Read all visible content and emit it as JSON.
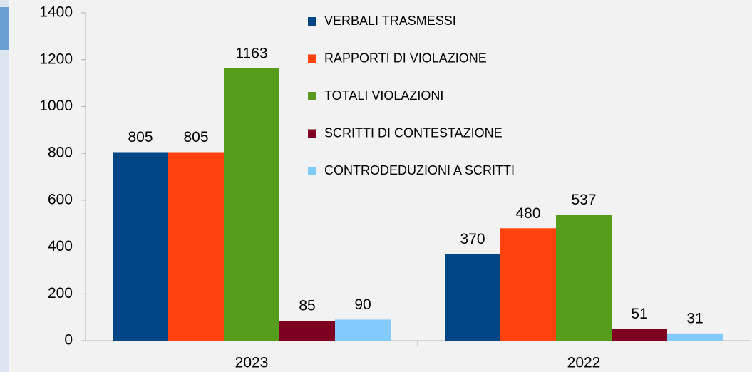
{
  "chart_data": {
    "type": "bar",
    "categories": [
      "2023",
      "2022"
    ],
    "series": [
      {
        "name": "VERBALI TRASMESSI",
        "color": "#004586",
        "values": [
          805,
          370
        ]
      },
      {
        "name": "RAPPORTI DI VIOLAZIONE",
        "color": "#ff420e",
        "values": [
          805,
          480
        ]
      },
      {
        "name": "TOTALI VIOLAZIONI",
        "color": "#579d1c",
        "values": [
          1163,
          537
        ]
      },
      {
        "name": "SCRITTI DI CONTESTAZIONE",
        "color": "#7e0021",
        "values": [
          85,
          51
        ]
      },
      {
        "name": "CONTRODEDUZIONI A SCRITTI",
        "color": "#83caff",
        "values": [
          90,
          31
        ]
      }
    ],
    "ylim": [
      0,
      1400
    ],
    "yticks": [
      0,
      200,
      400,
      600,
      800,
      1000,
      1200,
      1400
    ],
    "legend": "top-right"
  }
}
